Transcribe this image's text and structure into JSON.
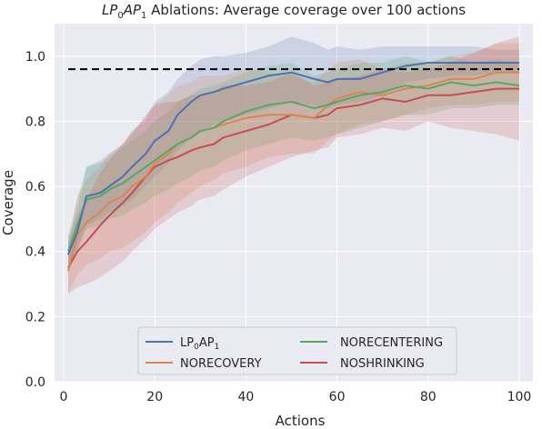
{
  "chart_data": {
    "type": "line",
    "title": {
      "italic_part": "LP",
      "sub1": "0",
      "italic_part2": "AP",
      "sub2": "1",
      "rest": " Ablations: Average coverage over 100 actions"
    },
    "xlabel": "Actions",
    "ylabel": "Coverage",
    "xlim": [
      -2,
      103
    ],
    "ylim": [
      0,
      1.1
    ],
    "xticks": [
      "0",
      "20",
      "40",
      "60",
      "80",
      "100"
    ],
    "yticks": [
      "0.0",
      "0.2",
      "0.4",
      "0.6",
      "0.8",
      "1.0"
    ],
    "grid": true,
    "background": "#eaeaf2",
    "reference_line": {
      "y": 0.96,
      "style": "dashed",
      "color": "#000000"
    },
    "legend": {
      "placement": "lower-center",
      "columns": 2
    },
    "series": [
      {
        "name": "LP",
        "name_sub": "0",
        "name_rest": "AP",
        "name_sub2": "1",
        "color": "#4c72b0",
        "x": [
          1,
          3,
          5,
          8,
          10,
          13,
          15,
          18,
          20,
          23,
          25,
          28,
          30,
          33,
          35,
          40,
          45,
          50,
          55,
          58,
          60,
          65,
          70,
          75,
          80,
          85,
          90,
          95,
          100
        ],
        "y": [
          0.39,
          0.46,
          0.57,
          0.58,
          0.6,
          0.63,
          0.66,
          0.7,
          0.74,
          0.77,
          0.82,
          0.86,
          0.88,
          0.89,
          0.9,
          0.92,
          0.94,
          0.95,
          0.93,
          0.92,
          0.93,
          0.93,
          0.95,
          0.97,
          0.98,
          0.98,
          0.98,
          0.98,
          0.98
        ],
        "band_low": [
          0.34,
          0.4,
          0.48,
          0.5,
          0.52,
          0.54,
          0.56,
          0.6,
          0.63,
          0.67,
          0.71,
          0.75,
          0.77,
          0.79,
          0.8,
          0.82,
          0.84,
          0.86,
          0.85,
          0.84,
          0.85,
          0.86,
          0.88,
          0.92,
          0.93,
          0.94,
          0.94,
          0.95,
          0.95
        ],
        "band_high": [
          0.44,
          0.53,
          0.66,
          0.68,
          0.7,
          0.73,
          0.77,
          0.81,
          0.86,
          0.89,
          0.93,
          0.97,
          0.99,
          1.0,
          1.0,
          1.01,
          1.03,
          1.06,
          1.04,
          1.02,
          1.03,
          1.02,
          1.03,
          1.03,
          1.03,
          1.03,
          1.03,
          1.02,
          1.02
        ]
      },
      {
        "name": "NORECOVERY",
        "color": "#dd8452",
        "x": [
          1,
          3,
          5,
          8,
          10,
          13,
          15,
          18,
          20,
          23,
          25,
          28,
          30,
          33,
          35,
          40,
          45,
          50,
          55,
          58,
          60,
          65,
          70,
          75,
          80,
          85,
          90,
          95,
          100
        ],
        "y": [
          0.34,
          0.45,
          0.49,
          0.52,
          0.55,
          0.57,
          0.6,
          0.63,
          0.67,
          0.7,
          0.73,
          0.75,
          0.77,
          0.78,
          0.79,
          0.81,
          0.82,
          0.82,
          0.81,
          0.85,
          0.87,
          0.89,
          0.88,
          0.9,
          0.91,
          0.93,
          0.93,
          0.95,
          0.95
        ],
        "band_low": [
          0.27,
          0.33,
          0.36,
          0.38,
          0.4,
          0.41,
          0.43,
          0.46,
          0.49,
          0.52,
          0.55,
          0.58,
          0.6,
          0.62,
          0.64,
          0.66,
          0.69,
          0.7,
          0.7,
          0.74,
          0.76,
          0.79,
          0.8,
          0.82,
          0.84,
          0.85,
          0.85,
          0.86,
          0.86
        ],
        "band_high": [
          0.41,
          0.57,
          0.62,
          0.66,
          0.7,
          0.73,
          0.77,
          0.8,
          0.85,
          0.88,
          0.91,
          0.92,
          0.94,
          0.94,
          0.94,
          0.96,
          0.95,
          0.94,
          0.92,
          0.96,
          0.98,
          0.99,
          0.96,
          0.98,
          0.98,
          1.0,
          1.01,
          1.04,
          1.04
        ]
      },
      {
        "name": "NORECENTERING",
        "color": "#55a868",
        "x": [
          1,
          3,
          5,
          8,
          10,
          13,
          15,
          18,
          20,
          23,
          25,
          28,
          30,
          33,
          35,
          40,
          45,
          50,
          55,
          58,
          60,
          65,
          70,
          75,
          80,
          85,
          90,
          95,
          100
        ],
        "y": [
          0.4,
          0.48,
          0.56,
          0.57,
          0.59,
          0.61,
          0.63,
          0.66,
          0.68,
          0.71,
          0.73,
          0.75,
          0.77,
          0.78,
          0.8,
          0.83,
          0.85,
          0.86,
          0.84,
          0.85,
          0.86,
          0.88,
          0.89,
          0.91,
          0.9,
          0.92,
          0.91,
          0.92,
          0.91
        ],
        "band_low": [
          0.35,
          0.41,
          0.47,
          0.48,
          0.5,
          0.51,
          0.53,
          0.55,
          0.57,
          0.59,
          0.61,
          0.63,
          0.65,
          0.66,
          0.68,
          0.71,
          0.73,
          0.75,
          0.74,
          0.75,
          0.76,
          0.78,
          0.8,
          0.82,
          0.82,
          0.84,
          0.84,
          0.85,
          0.85
        ],
        "band_high": [
          0.45,
          0.56,
          0.66,
          0.67,
          0.69,
          0.72,
          0.74,
          0.77,
          0.8,
          0.83,
          0.86,
          0.88,
          0.9,
          0.91,
          0.92,
          0.95,
          0.97,
          0.98,
          0.94,
          0.95,
          0.96,
          0.98,
          0.98,
          1.0,
          0.98,
          1.0,
          0.98,
          0.99,
          0.98
        ]
      },
      {
        "name": "NOSHRINKING",
        "color": "#c44e52",
        "x": [
          1,
          3,
          5,
          8,
          10,
          13,
          15,
          18,
          20,
          23,
          25,
          28,
          30,
          33,
          35,
          40,
          45,
          50,
          55,
          58,
          60,
          65,
          70,
          75,
          80,
          85,
          90,
          95,
          100
        ],
        "y": [
          0.35,
          0.4,
          0.43,
          0.48,
          0.51,
          0.55,
          0.58,
          0.63,
          0.66,
          0.68,
          0.69,
          0.71,
          0.72,
          0.73,
          0.75,
          0.77,
          0.79,
          0.82,
          0.81,
          0.82,
          0.84,
          0.85,
          0.87,
          0.86,
          0.88,
          0.88,
          0.89,
          0.9,
          0.9
        ],
        "band_low": [
          0.27,
          0.29,
          0.3,
          0.32,
          0.34,
          0.37,
          0.4,
          0.44,
          0.47,
          0.5,
          0.52,
          0.54,
          0.56,
          0.57,
          0.59,
          0.63,
          0.66,
          0.69,
          0.71,
          0.72,
          0.75,
          0.76,
          0.78,
          0.77,
          0.8,
          0.78,
          0.77,
          0.76,
          0.74
        ],
        "band_high": [
          0.43,
          0.51,
          0.56,
          0.64,
          0.68,
          0.73,
          0.76,
          0.82,
          0.85,
          0.86,
          0.86,
          0.88,
          0.88,
          0.89,
          0.91,
          0.91,
          0.92,
          0.95,
          0.91,
          0.92,
          0.93,
          0.94,
          0.96,
          0.95,
          0.96,
          0.98,
          1.01,
          1.04,
          1.06
        ]
      }
    ]
  }
}
